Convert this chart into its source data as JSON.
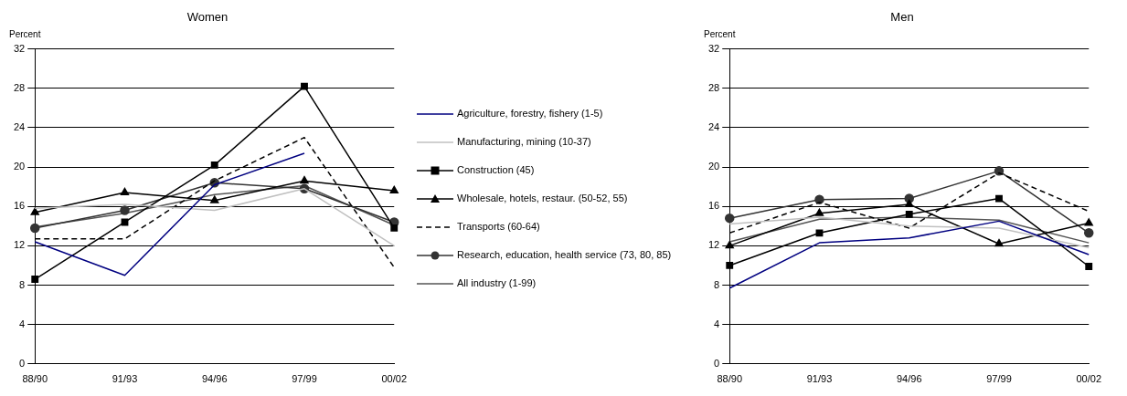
{
  "chart_data": [
    {
      "type": "line",
      "title": "Women",
      "ylabel": "Percent",
      "categories": [
        "88/90",
        "91/93",
        "94/96",
        "97/99",
        "00/02"
      ],
      "ylim": [
        0,
        32
      ],
      "yticks": [
        0,
        4,
        8,
        12,
        16,
        20,
        24,
        28,
        32
      ],
      "grid": "y",
      "legend": "right",
      "series": [
        {
          "name": "Agriculture, forestry, fishery (1-5)",
          "color": "#000080",
          "marker": "none",
          "line_style": "solid",
          "values": [
            12.4,
            9.0,
            18.2,
            21.4,
            null
          ]
        },
        {
          "name": "Manufacturing, mining (10-37)",
          "color": "#c0c0c0",
          "marker": "none",
          "line_style": "solid",
          "values": [
            15.8,
            16.2,
            15.6,
            17.8,
            12.0
          ]
        },
        {
          "name": "Construction (45)",
          "color": "#000000",
          "marker": "square",
          "line_style": "solid",
          "values": [
            8.6,
            14.4,
            20.2,
            28.2,
            13.8
          ]
        },
        {
          "name": "Wholesale, hotels, restaur. (50-52, 55)",
          "color": "#000000",
          "marker": "triangle",
          "line_style": "solid",
          "values": [
            15.4,
            17.4,
            16.6,
            18.6,
            17.6
          ]
        },
        {
          "name": "Transports (60-64)",
          "color": "#000000",
          "marker": "none",
          "line_style": "dashed",
          "values": [
            12.7,
            12.7,
            18.6,
            23.0,
            9.8
          ]
        },
        {
          "name": "Research, education, health service (73, 80, 85)",
          "color": "#333333",
          "marker": "circle",
          "line_style": "solid",
          "values": [
            13.8,
            15.6,
            18.4,
            17.8,
            14.4
          ]
        },
        {
          "name": "All industry (1-99)",
          "color": "#555555",
          "marker": "none",
          "line_style": "solid",
          "values": [
            13.9,
            15.3,
            17.2,
            18.1,
            14.1
          ]
        }
      ]
    },
    {
      "type": "line",
      "title": "Men",
      "ylabel": "Percent",
      "categories": [
        "88/90",
        "91/93",
        "94/96",
        "97/99",
        "00/02"
      ],
      "ylim": [
        0,
        32
      ],
      "yticks": [
        0,
        4,
        8,
        12,
        16,
        20,
        24,
        28,
        32
      ],
      "grid": "y",
      "series": [
        {
          "color": "#000080",
          "marker": "none",
          "line_style": "solid",
          "values": [
            7.7,
            12.3,
            12.8,
            14.5,
            11.1
          ]
        },
        {
          "color": "#c0c0c0",
          "marker": "none",
          "line_style": "solid",
          "values": [
            14.2,
            14.9,
            14.0,
            13.8,
            11.8
          ]
        },
        {
          "color": "#000000",
          "marker": "square",
          "line_style": "solid",
          "values": [
            10.0,
            13.3,
            15.2,
            16.8,
            9.9
          ]
        },
        {
          "color": "#000000",
          "marker": "triangle",
          "line_style": "solid",
          "values": [
            12.0,
            15.3,
            16.2,
            12.2,
            14.3
          ]
        },
        {
          "color": "#000000",
          "marker": "none",
          "line_style": "dashed",
          "values": [
            13.3,
            16.4,
            13.8,
            19.4,
            15.5
          ]
        },
        {
          "color": "#333333",
          "marker": "circle",
          "line_style": "solid",
          "values": [
            14.8,
            16.7,
            16.8,
            19.6,
            13.3
          ]
        },
        {
          "color": "#555555",
          "marker": "none",
          "line_style": "solid",
          "values": [
            12.4,
            14.7,
            14.9,
            14.6,
            12.3
          ]
        }
      ]
    }
  ]
}
